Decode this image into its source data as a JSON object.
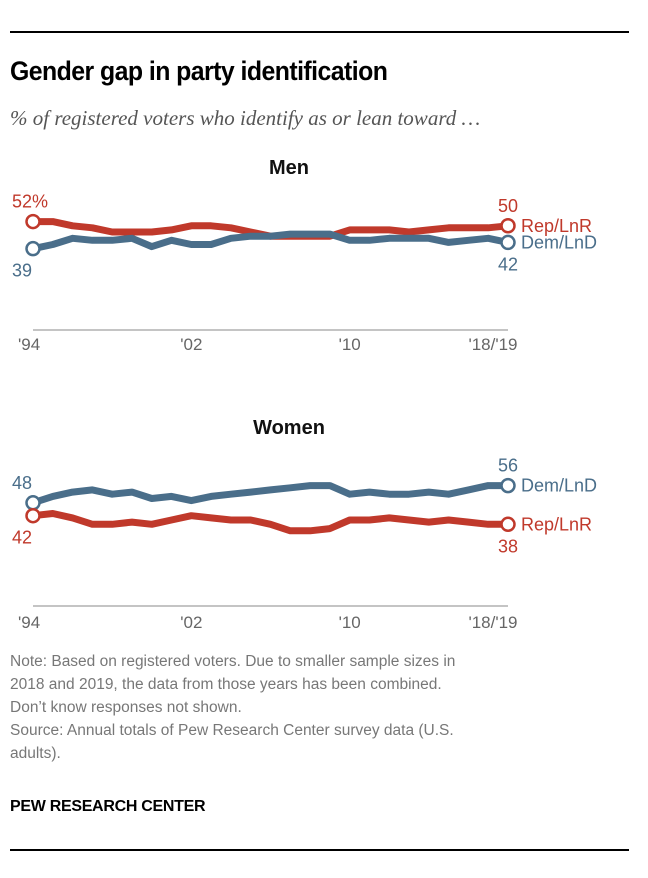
{
  "title": "Gender gap in party identification",
  "subtitle": "% of registered voters who identify as or lean toward …",
  "colors": {
    "rep": "#c0392b",
    "dem": "#4a6e8a"
  },
  "chart_data": [
    {
      "type": "line",
      "title": "Men",
      "xlabel": "",
      "ylabel": "",
      "ylim": [
        0,
        60
      ],
      "x": [
        "1994",
        "1995",
        "1996",
        "1997",
        "1998",
        "1999",
        "2000",
        "2001",
        "2002",
        "2003",
        "2004",
        "2005",
        "2006",
        "2007",
        "2008",
        "2009",
        "2010",
        "2011",
        "2012",
        "2013",
        "2014",
        "2015",
        "2016",
        "2017",
        "2018/2019"
      ],
      "x_tick_labels": [
        "'94",
        "'02",
        "'10",
        "'18/'19"
      ],
      "x_tick_positions": [
        "1994",
        "2002",
        "2010",
        "2018/2019"
      ],
      "grid": false,
      "series": [
        {
          "name": "Rep/LnR",
          "color": "#c0392b",
          "values": [
            52,
            52,
            50,
            49,
            47,
            47,
            47,
            48,
            50,
            50,
            49,
            47,
            45,
            45,
            45,
            45,
            48,
            48,
            48,
            47,
            48,
            49,
            49,
            49,
            50
          ],
          "start_label": "52%",
          "end_label": "50"
        },
        {
          "name": "Dem/LnD",
          "color": "#4a6e8a",
          "values": [
            39,
            41,
            44,
            43,
            43,
            44,
            40,
            43,
            41,
            41,
            44,
            45,
            45,
            46,
            46,
            46,
            43,
            43,
            44,
            44,
            44,
            42,
            43,
            44,
            42
          ],
          "start_label": "39",
          "end_label": "42"
        }
      ]
    },
    {
      "type": "line",
      "title": "Women",
      "xlabel": "",
      "ylabel": "",
      "ylim": [
        0,
        60
      ],
      "x": [
        "1994",
        "1995",
        "1996",
        "1997",
        "1998",
        "1999",
        "2000",
        "2001",
        "2002",
        "2003",
        "2004",
        "2005",
        "2006",
        "2007",
        "2008",
        "2009",
        "2010",
        "2011",
        "2012",
        "2013",
        "2014",
        "2015",
        "2016",
        "2017",
        "2018/2019"
      ],
      "x_tick_labels": [
        "'94",
        "'02",
        "'10",
        "'18/'19"
      ],
      "x_tick_positions": [
        "1994",
        "2002",
        "2010",
        "2018/2019"
      ],
      "grid": false,
      "series": [
        {
          "name": "Dem/LnD",
          "color": "#4a6e8a",
          "values": [
            48,
            51,
            53,
            54,
            52,
            53,
            50,
            51,
            49,
            51,
            52,
            53,
            54,
            55,
            56,
            56,
            52,
            53,
            52,
            52,
            53,
            52,
            54,
            56,
            56
          ],
          "start_label": "48",
          "end_label": "56"
        },
        {
          "name": "Rep/LnR",
          "color": "#c0392b",
          "values": [
            42,
            43,
            41,
            38,
            38,
            39,
            38,
            40,
            42,
            41,
            40,
            40,
            38,
            35,
            35,
            36,
            40,
            40,
            41,
            40,
            39,
            40,
            39,
            38,
            38
          ],
          "start_label": "42",
          "end_label": "38"
        }
      ]
    }
  ],
  "notes": [
    "Note: Based on registered voters. Due to smaller sample sizes in",
    "2018 and 2019, the data from those years has been combined.",
    "Don’t know responses not shown.",
    "Source: Annual totals of Pew Research Center survey data (U.S.",
    "adults)."
  ],
  "brand": "PEW RESEARCH CENTER"
}
